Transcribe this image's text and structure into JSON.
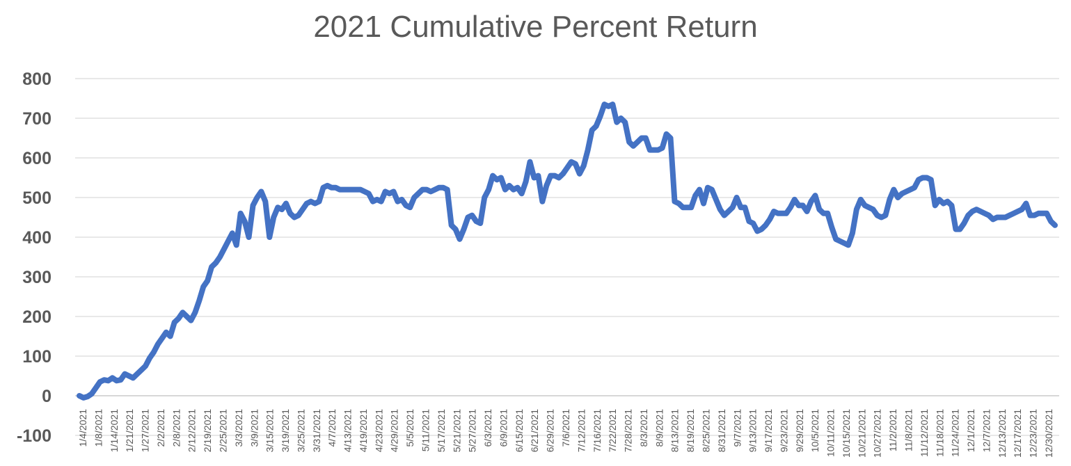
{
  "chart_data": {
    "type": "line",
    "title": "2021 Cumulative Percent Return",
    "xlabel": "",
    "ylabel": "",
    "ylim": [
      -100,
      800
    ],
    "yticks": [
      -100,
      0,
      100,
      200,
      300,
      400,
      500,
      600,
      700,
      800
    ],
    "grid": true,
    "legend": "none",
    "color": "#4472c4",
    "x_tick_labels": [
      "1/4/2021",
      "1/8/2021",
      "1/14/2021",
      "1/21/2021",
      "1/27/2021",
      "2/2/2021",
      "2/8/2021",
      "2/12/2021",
      "2/19/2021",
      "2/25/2021",
      "3/3/2021",
      "3/9/2021",
      "3/15/2021",
      "3/19/2021",
      "3/25/2021",
      "3/31/2021",
      "4/7/2021",
      "4/13/2021",
      "4/19/2021",
      "4/23/2021",
      "4/29/2021",
      "5/5/2021",
      "5/11/2021",
      "5/17/2021",
      "5/21/2021",
      "5/27/2021",
      "6/3/2021",
      "6/9/2021",
      "6/15/2021",
      "6/21/2021",
      "6/29/2021",
      "7/6/2021",
      "7/12/2021",
      "7/16/2021",
      "7/22/2021",
      "7/28/2021",
      "8/3/2021",
      "8/9/2021",
      "8/13/2021",
      "8/19/2021",
      "8/25/2021",
      "8/31/2021",
      "9/7/2021",
      "9/13/2021",
      "9/17/2021",
      "9/23/2021",
      "9/29/2021",
      "10/5/2021",
      "10/11/2021",
      "10/15/2021",
      "10/21/2021",
      "10/27/2021",
      "11/2/2021",
      "11/8/2021",
      "11/12/2021",
      "11/18/2021",
      "11/24/2021",
      "12/1/2021",
      "12/7/2021",
      "12/13/2021",
      "12/17/2021",
      "12/23/2021",
      "12/30/2021"
    ],
    "series": [
      {
        "values": [
          0,
          -5,
          -2,
          5,
          20,
          35,
          40,
          38,
          45,
          38,
          40,
          55,
          50,
          45,
          55,
          65,
          75,
          95,
          110,
          130,
          145,
          160,
          150,
          185,
          195,
          210,
          200,
          190,
          210,
          240,
          275,
          290,
          325,
          335,
          350,
          370,
          390,
          410,
          380,
          460,
          440,
          400,
          480,
          500,
          515,
          490,
          400,
          450,
          475,
          470,
          485,
          460,
          450,
          455,
          470,
          485,
          490,
          485,
          490,
          525,
          530,
          525,
          525,
          520,
          520,
          520,
          520,
          520,
          520,
          515,
          510,
          490,
          495,
          490,
          515,
          510,
          515,
          490,
          495,
          480,
          475,
          500,
          510,
          520,
          520,
          515,
          520,
          525,
          525,
          520,
          430,
          420,
          395,
          420,
          450,
          455,
          440,
          435,
          500,
          520,
          555,
          545,
          550,
          520,
          530,
          520,
          525,
          510,
          540,
          590,
          550,
          555,
          490,
          530,
          555,
          555,
          550,
          560,
          575,
          590,
          585,
          560,
          580,
          620,
          670,
          680,
          705,
          735,
          730,
          735,
          690,
          700,
          690,
          640,
          630,
          640,
          650,
          650,
          620,
          620,
          620,
          625,
          660,
          650,
          490,
          485,
          475,
          475,
          475,
          505,
          520,
          485,
          525,
          520,
          495,
          470,
          455,
          465,
          475,
          500,
          475,
          475,
          440,
          435,
          415,
          420,
          430,
          445,
          465,
          460,
          460,
          460,
          475,
          495,
          480,
          480,
          465,
          490,
          505,
          470,
          460,
          460,
          425,
          395,
          390,
          385,
          380,
          410,
          470,
          495,
          480,
          475,
          470,
          455,
          450,
          455,
          495,
          520,
          500,
          510,
          515,
          520,
          525,
          545,
          550,
          550,
          545,
          480,
          495,
          485,
          490,
          480,
          420,
          420,
          435,
          455,
          465,
          470,
          465,
          460,
          455,
          445,
          450,
          450,
          450,
          455,
          460,
          465,
          470,
          485,
          455,
          455,
          460,
          460,
          460,
          440,
          430
        ]
      }
    ]
  }
}
